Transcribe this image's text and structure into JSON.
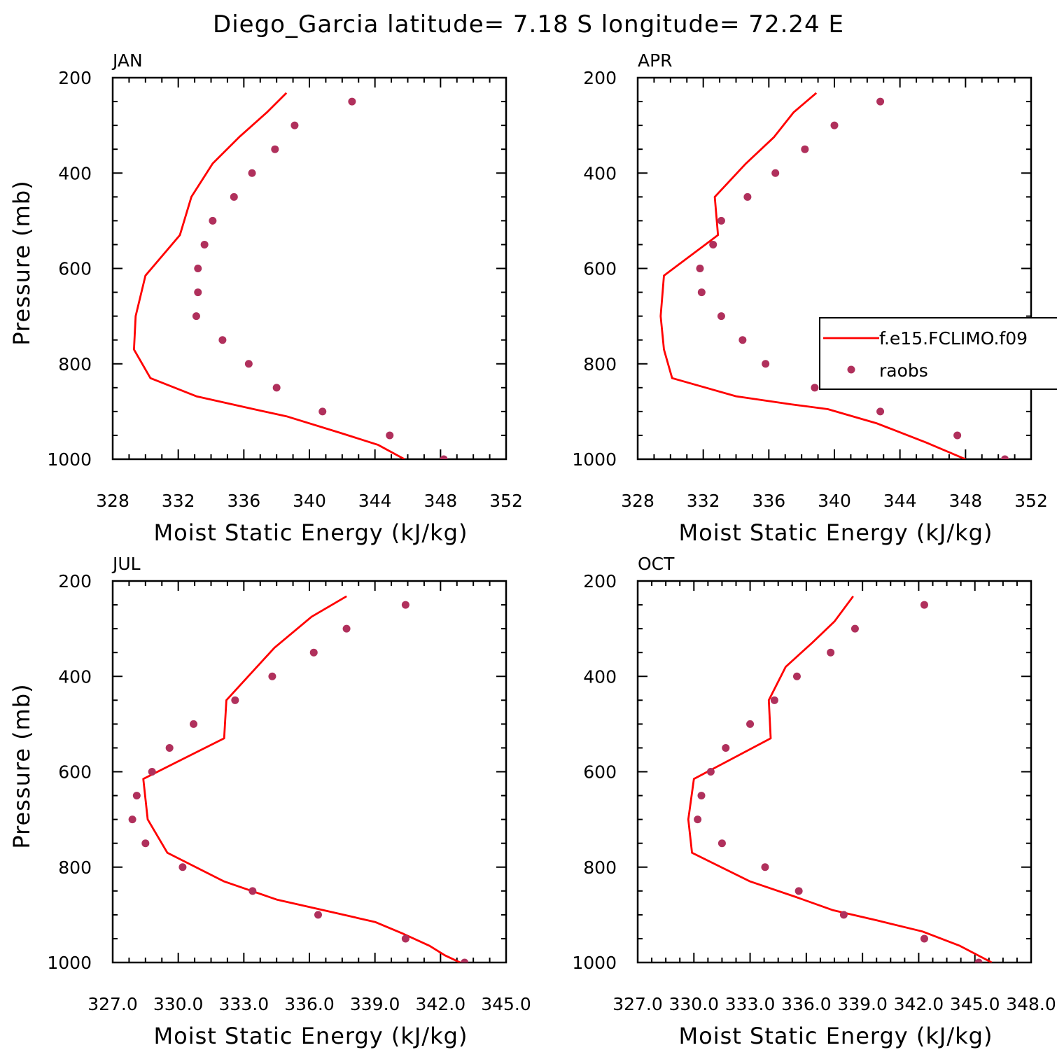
{
  "title": "Diego_Garcia  latitude= 7.18 S longitude= 72.24 E",
  "colors": {
    "model_line": "#ff0000",
    "obs_dots": "#b0305c",
    "axes": "#000000"
  },
  "legend": {
    "placement": "right, inside APR panel (clipped)",
    "entries": [
      {
        "label": "f.e15.FCLIMO.f09",
        "marker": "line",
        "color": "#ff0000"
      },
      {
        "label": "raobs",
        "marker": "dot",
        "color": "#b0305c"
      }
    ]
  },
  "chart_data": [
    {
      "type": "line",
      "title": "JAN",
      "xlabel": "Moist Static Energy (kJ/kg)",
      "ylabel": "Pressure (mb)",
      "xlim": [
        328,
        352
      ],
      "ylim": [
        200,
        1000
      ],
      "y_inverted": true,
      "x_ticks": [
        "328",
        "332",
        "336",
        "340",
        "344",
        "348",
        "352"
      ],
      "y_ticks": [
        "200",
        "400",
        "600",
        "800",
        "1000"
      ],
      "series": [
        {
          "name": "f.e15.FCLIMO.f09",
          "style": "line",
          "x": [
            338.6,
            337.4,
            335.7,
            334.1,
            332.8,
            332.1,
            330.0,
            329.4,
            329.3,
            330.3,
            333.1,
            336.6,
            338.6,
            341.9,
            344.2,
            345.8
          ],
          "y": [
            232,
            273,
            325,
            380,
            450,
            530,
            615,
            700,
            770,
            830,
            868,
            895,
            910,
            945,
            970,
            1000
          ]
        },
        {
          "name": "raobs",
          "style": "dots",
          "x": [
            342.6,
            339.1,
            337.9,
            336.5,
            335.4,
            334.1,
            333.6,
            333.2,
            333.2,
            333.1,
            334.7,
            336.3,
            338.0,
            340.8,
            344.9,
            348.2
          ],
          "y": [
            250,
            300,
            350,
            400,
            450,
            500,
            550,
            600,
            650,
            700,
            750,
            800,
            850,
            900,
            950,
            1000
          ]
        }
      ]
    },
    {
      "type": "line",
      "title": "APR",
      "xlabel": "Moist Static Energy (kJ/kg)",
      "ylabel": "",
      "xlim": [
        328,
        352
      ],
      "ylim": [
        200,
        1000
      ],
      "y_inverted": true,
      "x_ticks": [
        "328",
        "332",
        "336",
        "340",
        "344",
        "348",
        "352"
      ],
      "y_ticks": [
        "200",
        "400",
        "600",
        "800",
        "1000"
      ],
      "series": [
        {
          "name": "f.e15.FCLIMO.f09",
          "style": "line",
          "x": [
            338.9,
            337.5,
            336.3,
            334.6,
            332.7,
            332.9,
            329.6,
            329.4,
            329.6,
            330.1,
            334.0,
            337.4,
            339.6,
            342.6,
            345.6,
            348.0
          ],
          "y": [
            232,
            273,
            325,
            380,
            450,
            530,
            615,
            700,
            770,
            830,
            868,
            885,
            895,
            925,
            965,
            1000
          ]
        },
        {
          "name": "raobs",
          "style": "dots",
          "x": [
            342.8,
            340.0,
            338.2,
            336.4,
            334.7,
            333.1,
            332.6,
            331.8,
            331.9,
            333.1,
            334.4,
            335.8,
            338.8,
            342.8,
            347.5,
            350.4
          ],
          "y": [
            250,
            300,
            350,
            400,
            450,
            500,
            550,
            600,
            650,
            700,
            750,
            800,
            850,
            900,
            950,
            1000
          ]
        }
      ]
    },
    {
      "type": "line",
      "title": "JUL",
      "xlabel": "Moist Static Energy (kJ/kg)",
      "ylabel": "Pressure (mb)",
      "xlim": [
        327,
        345
      ],
      "ylim": [
        200,
        1000
      ],
      "y_inverted": true,
      "x_ticks": [
        "327.0",
        "330.0",
        "333.0",
        "336.0",
        "339.0",
        "342.0",
        "345.0"
      ],
      "y_ticks": [
        "200",
        "400",
        "600",
        "800",
        "1000"
      ],
      "series": [
        {
          "name": "f.e15.FCLIMO.f09",
          "style": "line",
          "x": [
            337.7,
            336.1,
            334.4,
            332.2,
            332.1,
            328.4,
            328.6,
            329.5,
            332.1,
            334.5,
            337.1,
            339.0,
            340.3,
            341.5,
            342.2,
            342.9
          ],
          "y": [
            232,
            275,
            340,
            450,
            530,
            615,
            700,
            770,
            830,
            868,
            895,
            915,
            940,
            965,
            985,
            1000
          ]
        },
        {
          "name": "raobs",
          "style": "dots",
          "x": [
            340.4,
            337.7,
            336.2,
            334.3,
            332.6,
            330.7,
            329.6,
            328.8,
            328.1,
            327.9,
            328.5,
            330.2,
            333.4,
            336.4,
            340.4,
            343.1
          ],
          "y": [
            250,
            300,
            350,
            400,
            450,
            500,
            550,
            600,
            650,
            700,
            750,
            800,
            850,
            900,
            950,
            1000
          ]
        }
      ]
    },
    {
      "type": "line",
      "title": "OCT",
      "xlabel": "Moist Static Energy (kJ/kg)",
      "ylabel": "",
      "xlim": [
        327,
        348
      ],
      "ylim": [
        200,
        1000
      ],
      "y_inverted": true,
      "x_ticks": [
        "327.0",
        "330.0",
        "333.0",
        "336.0",
        "339.0",
        "342.0",
        "345.0",
        "348.0"
      ],
      "y_ticks": [
        "200",
        "400",
        "600",
        "800",
        "1000"
      ],
      "series": [
        {
          "name": "f.e15.FCLIMO.f09",
          "style": "line",
          "x": [
            338.5,
            337.5,
            336.3,
            334.9,
            334.0,
            334.1,
            330.0,
            329.7,
            329.9,
            333.0,
            335.4,
            337.4,
            339.8,
            342.2,
            344.2,
            345.9
          ],
          "y": [
            232,
            285,
            330,
            380,
            450,
            530,
            615,
            700,
            770,
            830,
            862,
            890,
            912,
            935,
            965,
            1000
          ]
        },
        {
          "name": "raobs",
          "style": "dots",
          "x": [
            342.3,
            338.6,
            337.3,
            335.5,
            334.3,
            333.0,
            331.7,
            330.9,
            330.4,
            330.2,
            331.5,
            333.8,
            335.6,
            338.0,
            342.3,
            345.2
          ],
          "y": [
            250,
            300,
            350,
            400,
            450,
            500,
            550,
            600,
            650,
            700,
            750,
            800,
            850,
            900,
            950,
            1000
          ]
        }
      ]
    }
  ]
}
